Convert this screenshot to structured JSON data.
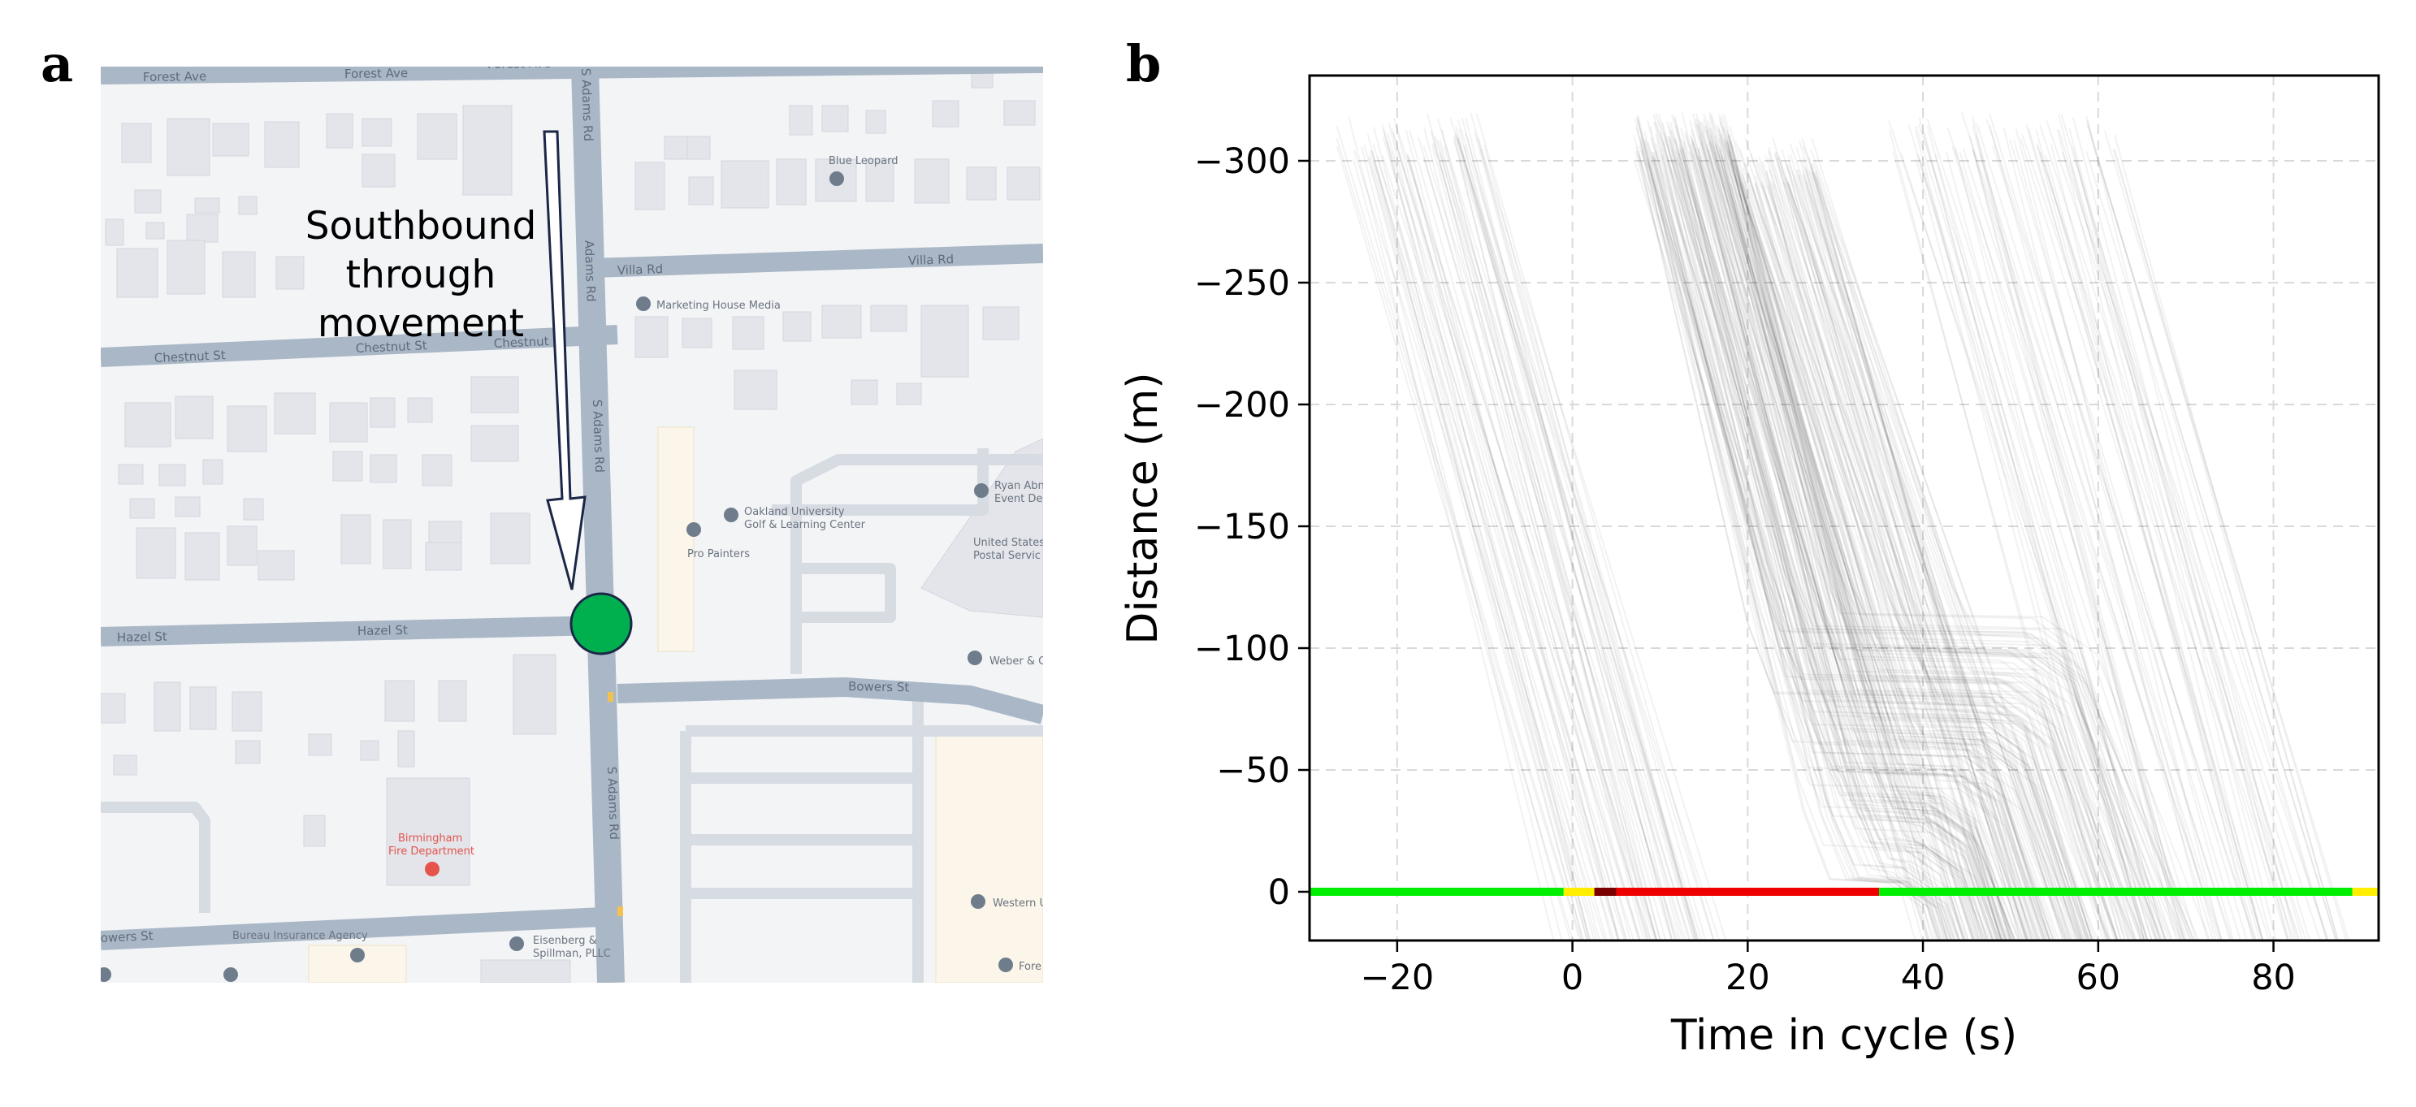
{
  "panels": {
    "a_label": "a",
    "b_label": "b"
  },
  "map": {
    "annotation_lines": [
      "Southbound",
      "through",
      "movement"
    ],
    "roads": {
      "forest_ave": "Forest Ave",
      "forest_ave_2": "Forest Ave",
      "forest_ave_3": "Forest Ave",
      "villa_rd": "Villa Rd",
      "villa_rd_2": "Villa Rd",
      "chestnut_st": "Chestnut St",
      "chestnut_st_2": "Chestnut St",
      "chestnut_st_3": "Chestnut",
      "hazel_st": "Hazel St",
      "hazel_st_2": "Hazel St",
      "bowers_st": "Bowers St",
      "bowers_st_left": "owers St",
      "s_adams_rd_1": "S Adams Rd",
      "s_adams_rd_2": "Adams Rd",
      "s_adams_rd_3": "S Adams Rd",
      "s_adams_rd_4": "S Adams Rd"
    },
    "pois": {
      "blue_leopard": "Blue Leopard",
      "marketing_house": "Marketing House Media",
      "oakland_univ_1": "Oakland University",
      "oakland_univ_2": "Golf & Learning Center",
      "pro_painters": "Pro Painters",
      "ryan_1": "Ryan Abn",
      "ryan_2": "Event Des",
      "usps_1": "United States",
      "usps_2": "Postal Servic",
      "weber": "Weber & O",
      "fire_1": "Birmingham",
      "fire_2": "Fire Department",
      "western": "Western U",
      "bureau": "Bureau Insurance Agency",
      "eisenberg_1": "Eisenberg &",
      "eisenberg_2": "Spillman, PLLC",
      "fore": "Fore"
    },
    "colors": {
      "road": "#aab7c7",
      "background": "#f3f4f6",
      "building": "#e3e5ea",
      "arrow": "#1c2748",
      "marker_fill": "#00b04f",
      "marker_stroke": "#1c2748"
    }
  },
  "chart_data": {
    "type": "line",
    "xlabel": "Time in cycle (s)",
    "ylabel": "Distance (m)",
    "xlim": [
      -30,
      92
    ],
    "ylim": [
      20,
      -335
    ],
    "y_inverted": true,
    "xticks": [
      -20,
      0,
      20,
      40,
      60,
      80
    ],
    "xtick_labels": [
      "−20",
      "0",
      "20",
      "40",
      "60",
      "80"
    ],
    "yticks": [
      -300,
      -250,
      -200,
      -150,
      -100,
      -50,
      0
    ],
    "ytick_labels": [
      "−300",
      "−250",
      "−200",
      "−150",
      "−100",
      "−50",
      "0"
    ],
    "grid": true,
    "description": "",
    "signal_phases": [
      {
        "state": "green",
        "start": -30,
        "end": -1,
        "color": "#00ee00"
      },
      {
        "state": "yellow",
        "start": -1,
        "end": 2.5,
        "color": "#ffee00"
      },
      {
        "state": "all-red",
        "start": 2.5,
        "end": 5,
        "color": "#7a0000"
      },
      {
        "state": "red",
        "start": 5,
        "end": 35,
        "color": "#ee0000"
      },
      {
        "state": "green",
        "start": 35,
        "end": 89,
        "color": "#00ee00"
      },
      {
        "state": "yellow",
        "start": 89,
        "end": 92,
        "color": "#ffee00"
      }
    ],
    "trajectory_groups": [
      {
        "name": "",
        "start_time_range": [
          -27,
          -10
        ],
        "start_distance": -310,
        "speed_mps": 12.8,
        "count": 70,
        "stop": false
      },
      {
        "name": "",
        "start_time_range": [
          7,
          18
        ],
        "start_distance": -310,
        "speed_mps": 12.5,
        "count": 160,
        "stop": true,
        "queue_release": 35
      },
      {
        "name": "",
        "start_time_range": [
          18,
          28
        ],
        "start_distance": -300,
        "speed_mps": 11.5,
        "count": 80,
        "stop": true,
        "queue_release": 38
      },
      {
        "name": "",
        "start_time_range": [
          36,
          62
        ],
        "start_distance": -310,
        "speed_mps": 12.5,
        "count": 70,
        "stop": false
      }
    ]
  }
}
